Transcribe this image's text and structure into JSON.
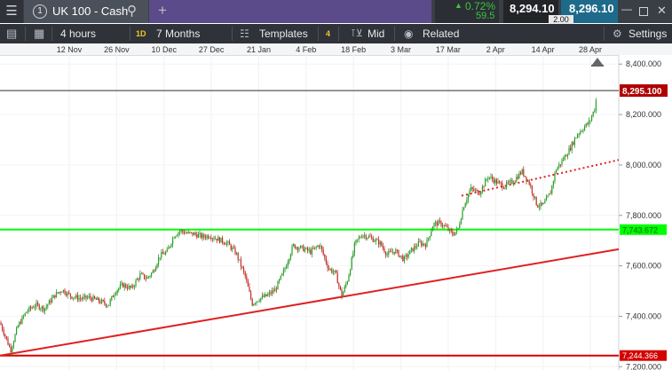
{
  "window": {
    "menu_icon": "hamburger-icon",
    "tab_number": "1",
    "instrument": "UK 100 - Cash",
    "search_icon": "search-icon",
    "add_tab_icon": "plus-icon"
  },
  "quote": {
    "change_pct": "0.72%",
    "change_pts": "59.5",
    "direction_icon": "up-arrow-icon",
    "sell": "8,294.10",
    "spread": "2.00",
    "buy": "8,296.10",
    "up_color": "#3ec43e"
  },
  "toolbar": {
    "interval": "4 hours",
    "range_badge": "1D",
    "range": "7 Months",
    "templates": "Templates",
    "indicator_count": "4",
    "price_type": "Mid",
    "related": "Related",
    "settings": "Settings"
  },
  "chart_data": {
    "type": "candlestick",
    "x_tick_labels": [
      "12 Nov",
      "26 Nov",
      "10 Dec",
      "27 Dec",
      "21 Jan",
      "4 Feb",
      "18 Feb",
      "3 Mar",
      "17 Mar",
      "2 Apr",
      "14 Apr",
      "28 Apr"
    ],
    "y_tick_labels": [
      "8,400.000",
      "8,200.000",
      "8,000.000",
      "7,800.000",
      "7,600.000",
      "7,400.000",
      "7,200.000"
    ],
    "y_ticks": [
      8400,
      8200,
      8000,
      7800,
      7600,
      7400,
      7200
    ],
    "ylim": [
      7187,
      8436
    ],
    "current_price": 8295.1,
    "current_price_label": "8,295.100",
    "price_path": [
      [
        0,
        7375
      ],
      [
        5,
        7330
      ],
      [
        12,
        7265
      ],
      [
        20,
        7360
      ],
      [
        30,
        7420
      ],
      [
        40,
        7445
      ],
      [
        50,
        7430
      ],
      [
        62,
        7485
      ],
      [
        70,
        7505
      ],
      [
        80,
        7480
      ],
      [
        92,
        7470
      ],
      [
        100,
        7475
      ],
      [
        112,
        7460
      ],
      [
        122,
        7445
      ],
      [
        130,
        7500
      ],
      [
        138,
        7525
      ],
      [
        148,
        7510
      ],
      [
        158,
        7565
      ],
      [
        165,
        7550
      ],
      [
        172,
        7575
      ],
      [
        180,
        7640
      ],
      [
        188,
        7655
      ],
      [
        196,
        7720
      ],
      [
        203,
        7740
      ],
      [
        210,
        7730
      ],
      [
        220,
        7725
      ],
      [
        228,
        7715
      ],
      [
        236,
        7720
      ],
      [
        246,
        7705
      ],
      [
        256,
        7690
      ],
      [
        266,
        7650
      ],
      [
        276,
        7560
      ],
      [
        284,
        7450
      ],
      [
        292,
        7470
      ],
      [
        300,
        7480
      ],
      [
        310,
        7505
      ],
      [
        320,
        7580
      ],
      [
        330,
        7680
      ],
      [
        340,
        7670
      ],
      [
        350,
        7655
      ],
      [
        360,
        7685
      ],
      [
        370,
        7590
      ],
      [
        378,
        7570
      ],
      [
        385,
        7480
      ],
      [
        392,
        7550
      ],
      [
        400,
        7690
      ],
      [
        408,
        7725
      ],
      [
        418,
        7710
      ],
      [
        428,
        7690
      ],
      [
        436,
        7645
      ],
      [
        445,
        7660
      ],
      [
        455,
        7625
      ],
      [
        463,
        7660
      ],
      [
        472,
        7690
      ],
      [
        480,
        7685
      ],
      [
        488,
        7765
      ],
      [
        496,
        7770
      ],
      [
        503,
        7750
      ],
      [
        510,
        7725
      ],
      [
        516,
        7745
      ],
      [
        522,
        7835
      ],
      [
        530,
        7905
      ],
      [
        540,
        7890
      ],
      [
        550,
        7955
      ],
      [
        558,
        7935
      ],
      [
        568,
        7915
      ],
      [
        578,
        7935
      ],
      [
        588,
        7975
      ],
      [
        596,
        7930
      ],
      [
        605,
        7840
      ],
      [
        612,
        7840
      ],
      [
        620,
        7890
      ],
      [
        626,
        7980
      ],
      [
        633,
        8015
      ],
      [
        642,
        8065
      ],
      [
        650,
        8120
      ],
      [
        658,
        8150
      ],
      [
        664,
        8170
      ],
      [
        670,
        8225
      ],
      [
        673,
        8295
      ]
    ],
    "h_lines": [
      {
        "value": 7743.672,
        "label": "7,743.672",
        "color": "#00ff00"
      },
      {
        "value": 7244.366,
        "label": "7,244.366",
        "color": "#d40000"
      }
    ],
    "trend_lines": [
      {
        "from": [
          0,
          7244
        ],
        "to": [
          697,
          7666
        ],
        "color": "#e02020",
        "style": "solid"
      },
      {
        "from": [
          520,
          7878
        ],
        "to": [
          697,
          8020
        ],
        "color": "#e02020",
        "style": "dotted"
      }
    ],
    "up_color": "#2a9d2a",
    "down_color": "#c0302b"
  }
}
